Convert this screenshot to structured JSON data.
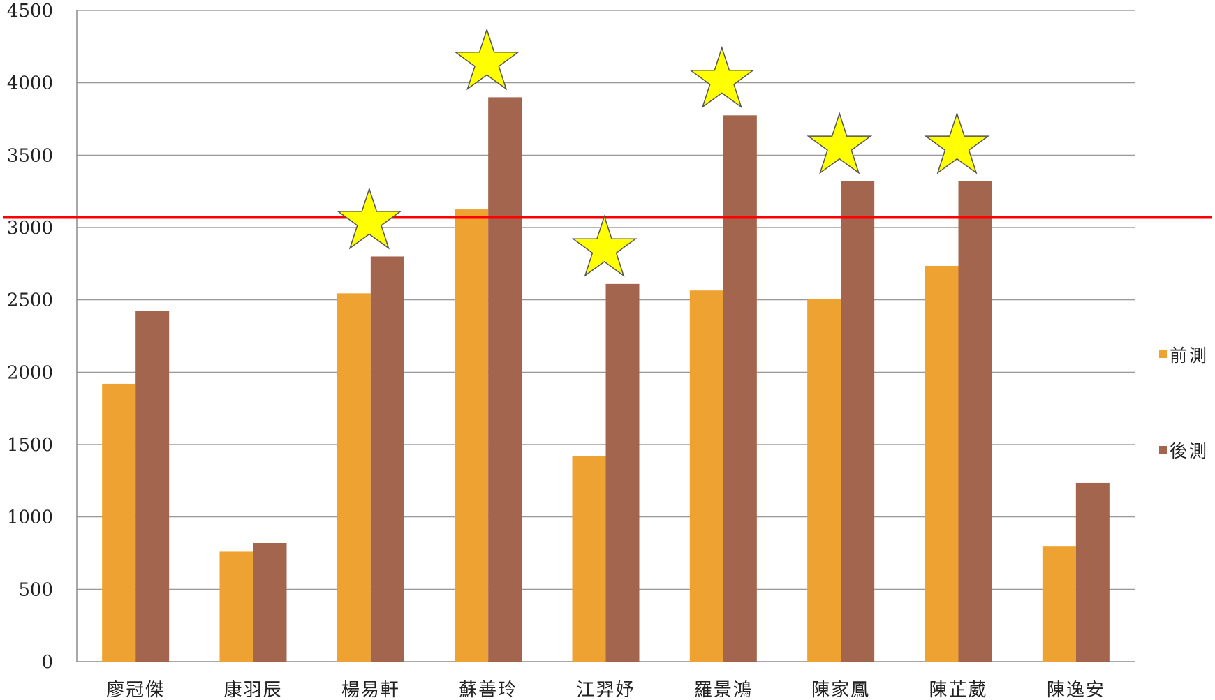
{
  "chart_data": {
    "type": "bar",
    "categories": [
      "廖冠傑",
      "康羽辰",
      "楊易軒",
      "蘇善玲",
      "江羿妤",
      "羅景鴻",
      "陳家鳳",
      "陳芷葳",
      "陳逸安"
    ],
    "series": [
      {
        "name": "前測",
        "color": "#eea232",
        "values": [
          1920,
          760,
          2545,
          3125,
          1420,
          2565,
          2505,
          2735,
          795
        ]
      },
      {
        "name": "後測",
        "color": "#a3654d",
        "values": [
          2425,
          820,
          2800,
          3900,
          2610,
          3775,
          3320,
          3320,
          1235
        ]
      }
    ],
    "ylim": [
      0,
      4500
    ],
    "yticks": [
      "0",
      "500",
      "1000",
      "1500",
      "2000",
      "2500",
      "3000",
      "3500",
      "4000",
      "4500"
    ],
    "grid": true,
    "legend_position": "right",
    "reference_line": {
      "value": 3070,
      "color": "#ff0000"
    },
    "star_markers": {
      "color": "#ffff00",
      "outline": "#555555",
      "categories": [
        "楊易軒",
        "蘇善玲",
        "江羿妤",
        "羅景鴻",
        "陳家鳳",
        "陳芷葳"
      ]
    },
    "title": "",
    "xlabel": "",
    "ylabel": ""
  }
}
